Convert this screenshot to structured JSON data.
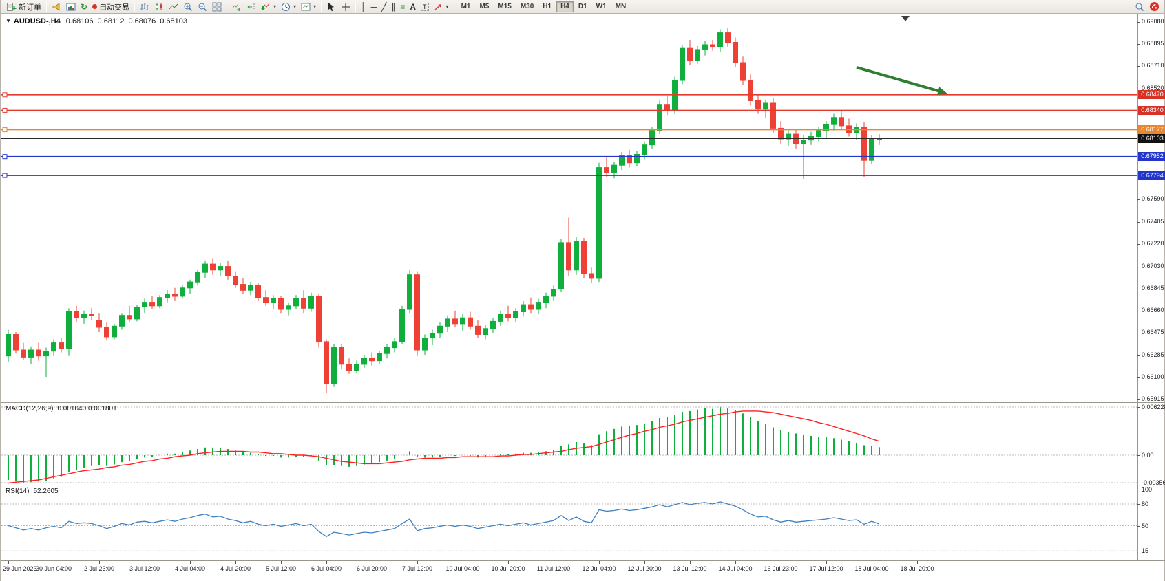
{
  "toolbar": {
    "new_order_label": "新订单",
    "autotrading_label": "自动交易",
    "timeframes": [
      "M1",
      "M5",
      "M15",
      "M30",
      "H1",
      "H4",
      "D1",
      "W1",
      "MN"
    ],
    "active_timeframe": "H4"
  },
  "glyphs": {
    "caret": "▾",
    "refresh": "↻",
    "vline": "│",
    "hline": "─",
    "tline": "╱",
    "channel": "∥",
    "fibo": "≡",
    "text_tool": "A",
    "label_tool": "T",
    "chart_menu_triangle": "▼"
  },
  "header": {
    "symbol_period": "AUDUSD-,H4",
    "open": "0.68106",
    "high": "0.68112",
    "low": "0.68076",
    "close": "0.68103"
  },
  "colors": {
    "bull": "#0fae3d",
    "bear": "#ee4035",
    "macd_histogram": "#0fae3d",
    "macd_signal": "#ff1f1f",
    "rsi_line": "#4080bf",
    "level_red": "#e23b2e",
    "level_blue": "#2336cc",
    "level_orange": "#e8872e",
    "current_price_line": "#2b2b2b",
    "badge_red": "#d83226",
    "badge_orange": "#e8872e",
    "badge_blue": "#2336cc",
    "badge_black": "#111111",
    "arrow_green": "#2f7e32",
    "axis_text": "#1c1c1c"
  },
  "chart_data": {
    "type": "candlestick",
    "symbol": "AUDUSD-",
    "period": "H4",
    "title": "AUDUSD-,H4 0.68106 0.68112 0.68076 0.68103",
    "price_axis": {
      "max": 0.6908,
      "min": 0.65915,
      "labels": [
        0.6908,
        0.68895,
        0.6871,
        0.6852,
        0.6759,
        0.67405,
        0.6722,
        0.6703,
        0.66845,
        0.6666,
        0.66475,
        0.66285,
        0.661,
        0.65915
      ]
    },
    "time_labels": [
      "29 Jun 2023",
      "30 Jun 04:00",
      "2 Jul 23:00",
      "3 Jul 12:00",
      "4 Jul 04:00",
      "4 Jul 20:00",
      "5 Jul 12:00",
      "6 Jul 04:00",
      "6 Jul 20:00",
      "7 Jul 12:00",
      "10 Jul 04:00",
      "10 Jul 20:00",
      "11 Jul 12:00",
      "12 Jul 04:00",
      "12 Jul 20:00",
      "13 Jul 12:00",
      "14 Jul 04:00",
      "16 Jul 23:00",
      "17 Jul 12:00",
      "18 Jul 04:00",
      "18 Jul 20:00"
    ],
    "candles_per_label": 6,
    "levels": [
      {
        "price": 0.6847,
        "style": "red"
      },
      {
        "price": 0.6834,
        "style": "red"
      },
      {
        "price": 0.68177,
        "style": "orange"
      },
      {
        "price": 0.68103,
        "style": "current"
      },
      {
        "price": 0.67952,
        "style": "blue"
      },
      {
        "price": 0.67794,
        "style": "blue"
      }
    ],
    "annotations": {
      "trend_arrow": {
        "from": {
          "candle": 112,
          "price": 0.687
        },
        "to": {
          "candle": 124,
          "price": 0.6848
        }
      }
    },
    "candles": [
      [
        0.6628,
        0.665,
        0.6623,
        0.6646
      ],
      [
        0.6646,
        0.6648,
        0.663,
        0.6633
      ],
      [
        0.6633,
        0.6639,
        0.6625,
        0.6627
      ],
      [
        0.6627,
        0.6636,
        0.6621,
        0.6633
      ],
      [
        0.6633,
        0.6639,
        0.6624,
        0.6628
      ],
      [
        0.6628,
        0.6635,
        0.661,
        0.6632
      ],
      [
        0.6632,
        0.6642,
        0.6628,
        0.6639
      ],
      [
        0.6639,
        0.6643,
        0.6631,
        0.6634
      ],
      [
        0.6634,
        0.6668,
        0.6628,
        0.6665
      ],
      [
        0.6665,
        0.667,
        0.6656,
        0.666
      ],
      [
        0.666,
        0.6666,
        0.6655,
        0.6663
      ],
      [
        0.6663,
        0.6668,
        0.6658,
        0.6662
      ],
      [
        0.6658,
        0.6664,
        0.6648,
        0.6652
      ],
      [
        0.6652,
        0.6656,
        0.6641,
        0.6644
      ],
      [
        0.6644,
        0.6655,
        0.6642,
        0.6653
      ],
      [
        0.6653,
        0.6664,
        0.665,
        0.6662
      ],
      [
        0.6662,
        0.667,
        0.6656,
        0.6659
      ],
      [
        0.6659,
        0.6671,
        0.6657,
        0.6669
      ],
      [
        0.6669,
        0.6676,
        0.6664,
        0.6673
      ],
      [
        0.6673,
        0.6678,
        0.6667,
        0.667
      ],
      [
        0.667,
        0.6679,
        0.6668,
        0.6677
      ],
      [
        0.6677,
        0.6683,
        0.6673,
        0.668
      ],
      [
        0.668,
        0.6685,
        0.6674,
        0.6678
      ],
      [
        0.6678,
        0.6687,
        0.6676,
        0.6685
      ],
      [
        0.6685,
        0.6692,
        0.668,
        0.669
      ],
      [
        0.669,
        0.67,
        0.6687,
        0.6698
      ],
      [
        0.6698,
        0.6708,
        0.6693,
        0.6705
      ],
      [
        0.6705,
        0.671,
        0.6696,
        0.67
      ],
      [
        0.67,
        0.6706,
        0.6695,
        0.6703
      ],
      [
        0.6703,
        0.6708,
        0.6692,
        0.6695
      ],
      [
        0.6695,
        0.6699,
        0.6685,
        0.6688
      ],
      [
        0.6688,
        0.6693,
        0.668,
        0.6683
      ],
      [
        0.6683,
        0.669,
        0.6679,
        0.6687
      ],
      [
        0.6687,
        0.6689,
        0.6674,
        0.6677
      ],
      [
        0.6677,
        0.6683,
        0.667,
        0.6673
      ],
      [
        0.6673,
        0.6679,
        0.6667,
        0.6676
      ],
      [
        0.6676,
        0.6678,
        0.6664,
        0.6667
      ],
      [
        0.6667,
        0.6673,
        0.6662,
        0.667
      ],
      [
        0.667,
        0.6679,
        0.6667,
        0.6676
      ],
      [
        0.6676,
        0.6683,
        0.6664,
        0.6668
      ],
      [
        0.6668,
        0.6681,
        0.6665,
        0.6678
      ],
      [
        0.6678,
        0.668,
        0.6635,
        0.664
      ],
      [
        0.664,
        0.6642,
        0.6597,
        0.6605
      ],
      [
        0.6605,
        0.6638,
        0.6602,
        0.6635
      ],
      [
        0.6635,
        0.6638,
        0.6617,
        0.6621
      ],
      [
        0.6621,
        0.6626,
        0.6613,
        0.6616
      ],
      [
        0.6616,
        0.6624,
        0.6614,
        0.6621
      ],
      [
        0.6621,
        0.6629,
        0.6618,
        0.6626
      ],
      [
        0.6626,
        0.6631,
        0.662,
        0.6624
      ],
      [
        0.6624,
        0.6632,
        0.6621,
        0.663
      ],
      [
        0.663,
        0.6638,
        0.6626,
        0.6635
      ],
      [
        0.6635,
        0.6643,
        0.6631,
        0.664
      ],
      [
        0.664,
        0.667,
        0.6638,
        0.6667
      ],
      [
        0.6667,
        0.67,
        0.6664,
        0.6696
      ],
      [
        0.6696,
        0.6699,
        0.6628,
        0.6633
      ],
      [
        0.6633,
        0.6646,
        0.6629,
        0.6643
      ],
      [
        0.6643,
        0.665,
        0.6637,
        0.6647
      ],
      [
        0.6647,
        0.6656,
        0.6643,
        0.6653
      ],
      [
        0.6653,
        0.6662,
        0.6648,
        0.6659
      ],
      [
        0.6659,
        0.6666,
        0.6652,
        0.6655
      ],
      [
        0.6655,
        0.6663,
        0.6649,
        0.666
      ],
      [
        0.666,
        0.6665,
        0.665,
        0.6653
      ],
      [
        0.6653,
        0.6658,
        0.6643,
        0.6646
      ],
      [
        0.6646,
        0.6654,
        0.6642,
        0.6651
      ],
      [
        0.6651,
        0.666,
        0.6647,
        0.6657
      ],
      [
        0.6657,
        0.6666,
        0.6653,
        0.6663
      ],
      [
        0.6663,
        0.667,
        0.6657,
        0.666
      ],
      [
        0.666,
        0.6668,
        0.6656,
        0.6665
      ],
      [
        0.6665,
        0.6674,
        0.6661,
        0.6671
      ],
      [
        0.6671,
        0.6677,
        0.6664,
        0.6667
      ],
      [
        0.6667,
        0.6676,
        0.6663,
        0.6673
      ],
      [
        0.6673,
        0.6681,
        0.6668,
        0.6678
      ],
      [
        0.6678,
        0.6687,
        0.6674,
        0.6684
      ],
      [
        0.6684,
        0.6726,
        0.6682,
        0.6723
      ],
      [
        0.6723,
        0.6744,
        0.6695,
        0.67
      ],
      [
        0.67,
        0.6728,
        0.6696,
        0.6724
      ],
      [
        0.6724,
        0.6727,
        0.6693,
        0.6697
      ],
      [
        0.6697,
        0.6702,
        0.6689,
        0.6693
      ],
      [
        0.6693,
        0.679,
        0.669,
        0.6786
      ],
      [
        0.6786,
        0.6795,
        0.6778,
        0.6782
      ],
      [
        0.6782,
        0.6791,
        0.6777,
        0.6788
      ],
      [
        0.6788,
        0.6799,
        0.6784,
        0.6796
      ],
      [
        0.6796,
        0.6801,
        0.6786,
        0.679
      ],
      [
        0.679,
        0.68,
        0.6787,
        0.6797
      ],
      [
        0.6797,
        0.6808,
        0.6793,
        0.6805
      ],
      [
        0.6805,
        0.682,
        0.6802,
        0.6817
      ],
      [
        0.6817,
        0.6842,
        0.6814,
        0.6839
      ],
      [
        0.6839,
        0.6846,
        0.683,
        0.6834
      ],
      [
        0.6834,
        0.6862,
        0.6831,
        0.6859
      ],
      [
        0.6859,
        0.6889,
        0.6856,
        0.6886
      ],
      [
        0.6886,
        0.6893,
        0.6872,
        0.6876
      ],
      [
        0.6876,
        0.6888,
        0.6873,
        0.6885
      ],
      [
        0.6885,
        0.6892,
        0.688,
        0.6889
      ],
      [
        0.6889,
        0.6893,
        0.6884,
        0.6887
      ],
      [
        0.6887,
        0.6902,
        0.6883,
        0.6899
      ],
      [
        0.6899,
        0.6903,
        0.6887,
        0.6891
      ],
      [
        0.6891,
        0.6895,
        0.687,
        0.6874
      ],
      [
        0.6874,
        0.6879,
        0.6855,
        0.6859
      ],
      [
        0.6859,
        0.6864,
        0.6838,
        0.6842
      ],
      [
        0.6842,
        0.6848,
        0.6831,
        0.6835
      ],
      [
        0.6835,
        0.6843,
        0.6828,
        0.684
      ],
      [
        0.684,
        0.6844,
        0.6815,
        0.6819
      ],
      [
        0.6819,
        0.6825,
        0.6806,
        0.681
      ],
      [
        0.681,
        0.6817,
        0.6804,
        0.6814
      ],
      [
        0.6814,
        0.6818,
        0.6802,
        0.6806
      ],
      [
        0.6806,
        0.6813,
        0.6776,
        0.6809
      ],
      [
        0.6809,
        0.6816,
        0.6805,
        0.6812
      ],
      [
        0.6812,
        0.682,
        0.6808,
        0.6817
      ],
      [
        0.6817,
        0.6825,
        0.6811,
        0.6822
      ],
      [
        0.6822,
        0.6831,
        0.6817,
        0.6828
      ],
      [
        0.6828,
        0.6833,
        0.6818,
        0.6821
      ],
      [
        0.6821,
        0.6827,
        0.6812,
        0.6815
      ],
      [
        0.6815,
        0.6823,
        0.6809,
        0.682
      ],
      [
        0.682,
        0.6824,
        0.6778,
        0.6792
      ],
      [
        0.6792,
        0.6813,
        0.6789,
        0.681
      ],
      [
        0.681,
        0.6814,
        0.6805,
        0.68103
      ]
    ],
    "macd": {
      "name": "MACD(12,26,9)",
      "current_values": "0.001040 0.001801",
      "axis_labels": [
        {
          "text": "0.006228",
          "value": 0.006228
        },
        {
          "text": "0.00",
          "value": 0
        },
        {
          "text": "-0.003564",
          "value": -0.003564
        }
      ],
      "histogram": [
        -0.0032,
        -0.0034,
        -0.0036,
        -0.0035,
        -0.0034,
        -0.0033,
        -0.003,
        -0.0028,
        -0.0022,
        -0.0019,
        -0.0016,
        -0.0014,
        -0.0013,
        -0.0014,
        -0.0012,
        -0.0009,
        -0.0008,
        -0.0005,
        -0.0003,
        -0.0002,
        0.0,
        0.0002,
        0.0002,
        0.0004,
        0.0006,
        0.0008,
        0.001,
        0.001,
        0.0009,
        0.0008,
        0.0006,
        0.0004,
        0.0003,
        0.0001,
        -0.0001,
        -0.0001,
        -0.0003,
        -0.0003,
        -0.0002,
        -0.0002,
        -0.0001,
        -0.0007,
        -0.0013,
        -0.0013,
        -0.0014,
        -0.0015,
        -0.0014,
        -0.0012,
        -0.0011,
        -0.0009,
        -0.0007,
        -0.0005,
        0.0,
        0.0005,
        -0.0002,
        -0.0003,
        -0.0003,
        -0.0002,
        0.0,
        -0.0001,
        0.0,
        -0.0001,
        -0.0003,
        -0.0002,
        0.0,
        0.0001,
        0.0001,
        0.0002,
        0.0003,
        0.0003,
        0.0004,
        0.0005,
        0.0007,
        0.0012,
        0.0014,
        0.0017,
        0.0015,
        0.0013,
        0.0027,
        0.0031,
        0.0034,
        0.0037,
        0.0038,
        0.0039,
        0.0041,
        0.0044,
        0.0048,
        0.0049,
        0.0052,
        0.0056,
        0.0057,
        0.0059,
        0.0061,
        0.006,
        0.0062,
        0.0061,
        0.0058,
        0.0054,
        0.0049,
        0.0044,
        0.004,
        0.0036,
        0.0032,
        0.003,
        0.0028,
        0.0026,
        0.0025,
        0.0024,
        0.0023,
        0.0022,
        0.002,
        0.0018,
        0.0016,
        0.0013,
        0.0012,
        0.00104
      ],
      "signal": [
        -0.0036,
        -0.0035,
        -0.0034,
        -0.0033,
        -0.0032,
        -0.003,
        -0.0028,
        -0.0026,
        -0.0024,
        -0.0022,
        -0.002,
        -0.0019,
        -0.0018,
        -0.0016,
        -0.0015,
        -0.0013,
        -0.0012,
        -0.001,
        -0.0008,
        -0.0007,
        -0.0005,
        -0.0004,
        -0.0002,
        -0.0001,
        0.0,
        0.0002,
        0.0003,
        0.0004,
        0.0005,
        0.0005,
        0.0005,
        0.0005,
        0.0004,
        0.0004,
        0.0003,
        0.0002,
        0.0002,
        0.0001,
        0.0,
        0.0,
        -0.0001,
        -0.0002,
        -0.0004,
        -0.0006,
        -0.0008,
        -0.0009,
        -0.001,
        -0.0011,
        -0.0011,
        -0.0011,
        -0.001,
        -0.0009,
        -0.0008,
        -0.0006,
        -0.0005,
        -0.0004,
        -0.0004,
        -0.0004,
        -0.0003,
        -0.0003,
        -0.0002,
        -0.0002,
        -0.0002,
        -0.0002,
        -0.0002,
        -0.0001,
        -0.0001,
        0.0,
        0.0001,
        0.0001,
        0.0002,
        0.0003,
        0.0004,
        0.0005,
        0.0007,
        0.0009,
        0.001,
        0.0011,
        0.0014,
        0.0017,
        0.002,
        0.0023,
        0.0026,
        0.0028,
        0.0031,
        0.0033,
        0.0036,
        0.0038,
        0.004,
        0.0043,
        0.0045,
        0.0047,
        0.0049,
        0.0051,
        0.0053,
        0.0054,
        0.0056,
        0.0057,
        0.0057,
        0.0057,
        0.0056,
        0.0055,
        0.0053,
        0.0051,
        0.0049,
        0.0047,
        0.0045,
        0.0042,
        0.004,
        0.0037,
        0.0034,
        0.0031,
        0.0028,
        0.0025,
        0.0021,
        0.0018
      ]
    },
    "rsi": {
      "name": "RSI(14)",
      "current_value": "52.2605",
      "axis_labels": [
        {
          "text": "100",
          "value": 100
        },
        {
          "text": "80",
          "value": 80
        },
        {
          "text": "50",
          "value": 50
        },
        {
          "text": "15",
          "value": 15
        }
      ],
      "level_lines": [
        80,
        50,
        15
      ],
      "values": [
        50,
        47,
        44,
        46,
        44,
        47,
        49,
        47,
        56,
        53,
        54,
        53,
        50,
        46,
        49,
        53,
        51,
        55,
        56,
        54,
        56,
        58,
        56,
        59,
        61,
        64,
        66,
        62,
        63,
        59,
        57,
        54,
        56,
        52,
        50,
        52,
        49,
        51,
        53,
        50,
        52,
        42,
        35,
        41,
        39,
        37,
        39,
        41,
        40,
        42,
        44,
        46,
        53,
        59,
        43,
        46,
        47,
        49,
        51,
        49,
        51,
        49,
        46,
        48,
        50,
        52,
        50,
        52,
        54,
        51,
        53,
        55,
        57,
        64,
        57,
        62,
        56,
        54,
        72,
        70,
        71,
        73,
        71,
        72,
        74,
        76,
        79,
        76,
        79,
        82,
        79,
        81,
        82,
        80,
        83,
        80,
        77,
        72,
        66,
        62,
        63,
        58,
        55,
        57,
        55,
        56,
        57,
        58,
        59,
        61,
        59,
        57,
        58,
        52,
        56,
        52.26
      ]
    }
  }
}
